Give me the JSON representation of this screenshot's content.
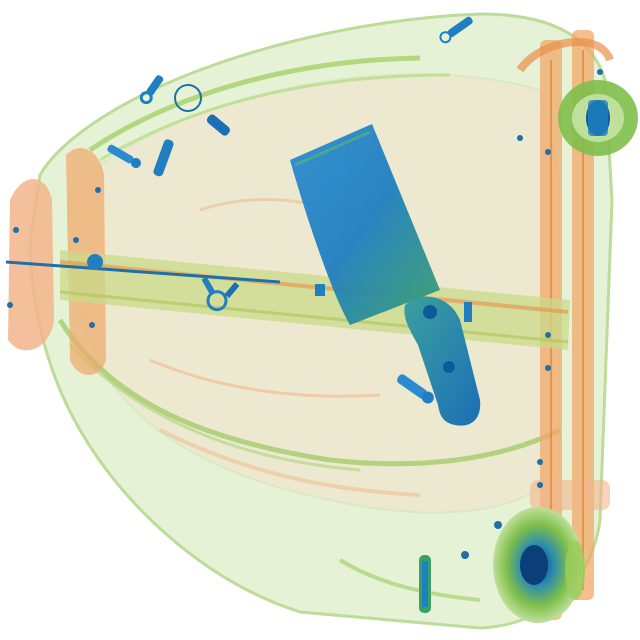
{
  "image": {
    "kind": "x-ray-baggage-scan",
    "background_color": "#ffffff",
    "palette": {
      "organic_light": "#f6c9a0",
      "organic": "#f0a86a",
      "organic_dark": "#e8904a",
      "mixed_light": "#cfe6b0",
      "mixed": "#9ccc5a",
      "mixed_dark": "#6faa3a",
      "metal": "#1f7fc0",
      "metal_dark": "#0d5a9a",
      "metal_core": "#0a3f7a"
    },
    "objects": [
      {
        "name": "suitcase-shell",
        "material": "mixed"
      },
      {
        "name": "telescoping-handle-frame",
        "material": "organic"
      },
      {
        "name": "carry-bar",
        "material": "mixed"
      },
      {
        "name": "cleaver-blade",
        "material": "metal"
      },
      {
        "name": "cleaver-handle",
        "material": "metal"
      },
      {
        "name": "wheel-top",
        "material": "mixed"
      },
      {
        "name": "wheel-bottom",
        "material": "mixed"
      },
      {
        "name": "zipper-pulls",
        "material": "metal"
      },
      {
        "name": "metal-rod",
        "material": "metal"
      }
    ]
  }
}
